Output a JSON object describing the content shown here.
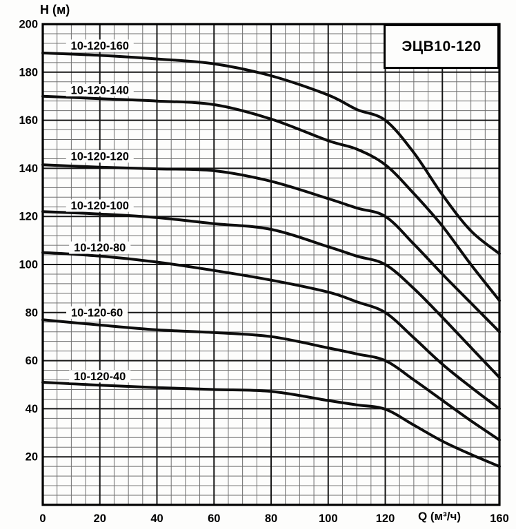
{
  "chart_data": {
    "type": "line",
    "title": "ЭЦВ10-120",
    "xlabel": "Q (м³/ч)",
    "ylabel": "Н (м)",
    "xlim": [
      0,
      160
    ],
    "ylim": [
      0,
      200
    ],
    "x_major_step": 20,
    "x_minor_step": 5,
    "y_major_step": 20,
    "y_minor_step": 4,
    "x_tick_values": [
      0,
      20,
      40,
      60,
      80,
      100,
      120,
      160
    ],
    "y_tick_values": [
      20,
      40,
      60,
      80,
      100,
      120,
      140,
      160,
      180,
      200
    ],
    "x": [
      0,
      20,
      40,
      60,
      80,
      100,
      110,
      120,
      130,
      140,
      150,
      160
    ],
    "series": [
      {
        "name": "10-120-160",
        "values": [
          188,
          187,
          185.5,
          183.5,
          178.5,
          170.5,
          164.5,
          160,
          146.5,
          129,
          114,
          104.5
        ],
        "label_at": {
          "q": 20,
          "h": 191
        }
      },
      {
        "name": "10-120-140",
        "values": [
          170,
          169,
          168,
          166.5,
          160.5,
          151.5,
          148,
          141.5,
          129.5,
          116,
          100,
          85
        ],
        "label_at": {
          "q": 20,
          "h": 172.5
        }
      },
      {
        "name": "10-120-120",
        "values": [
          141.5,
          140.5,
          139.8,
          139,
          134.6,
          127.4,
          123.5,
          120,
          108.5,
          96,
          84,
          72
        ],
        "label_at": {
          "q": 20,
          "h": 145
        }
      },
      {
        "name": "10-120-100",
        "values": [
          122,
          121,
          119.5,
          117,
          114.6,
          107.4,
          103.5,
          100,
          90,
          78,
          65.5,
          53
        ],
        "label_at": {
          "q": 20,
          "h": 124.5
        }
      },
      {
        "name": "10-120-80",
        "values": [
          105,
          103.5,
          101,
          97.5,
          93.5,
          88.5,
          84.5,
          80,
          69.5,
          58.5,
          49,
          40
        ],
        "label_at": {
          "q": 20,
          "h": 107
        }
      },
      {
        "name": "10-120-60",
        "values": [
          77,
          74.8,
          72.8,
          71.7,
          70,
          65.3,
          62.8,
          60,
          52,
          43.5,
          35,
          27
        ],
        "label_at": {
          "q": 19,
          "h": 80
        }
      },
      {
        "name": "10-120-40",
        "values": [
          51,
          49.8,
          48.8,
          48,
          47.2,
          43.4,
          41.6,
          39.8,
          33.2,
          26.5,
          21,
          16
        ],
        "label_at": {
          "q": 20,
          "h": 53.5
        }
      }
    ],
    "x_title_at_q": 137.5,
    "legend_position": "none",
    "grid": "on",
    "line_color": "#0d0d0d",
    "grid_minor_color": "#6e6e6e",
    "grid_major_color": "#161616",
    "border_color": "#000000",
    "background_color": "#fdfdfc",
    "text_color": "#000000"
  }
}
